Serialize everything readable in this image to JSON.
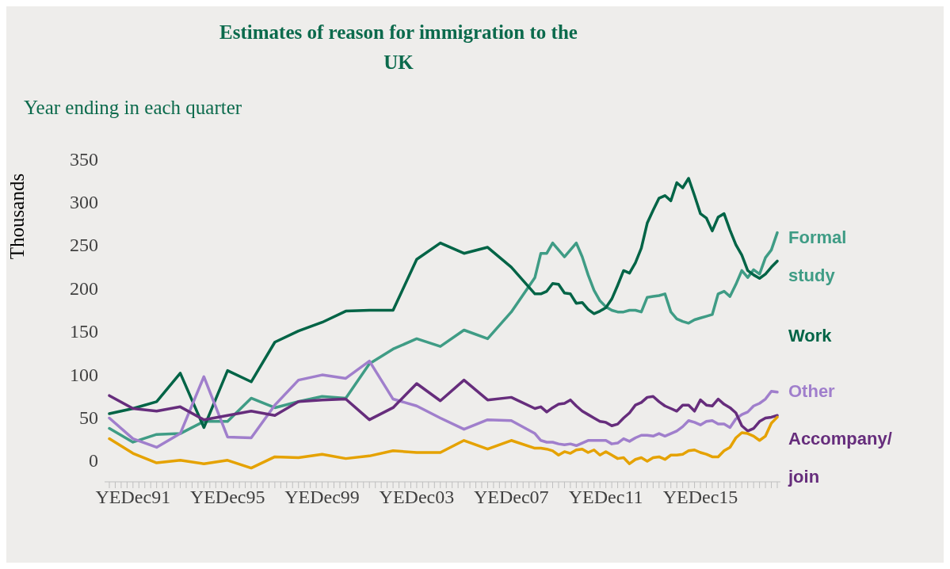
{
  "chart_data": {
    "type": "line",
    "title": "Estimates of reason for immigration to the UK",
    "subtitle": "Year ending in each quarter",
    "ylabel": "Thousands",
    "categories": [
      null,
      null,
      null,
      null,
      "YEDec91",
      null,
      null,
      null,
      null,
      null,
      null,
      null,
      null,
      null,
      null,
      null,
      null,
      null,
      null,
      null,
      "YEDec95",
      null,
      null,
      null,
      null,
      null,
      null,
      null,
      null,
      null,
      null,
      null,
      null,
      null,
      null,
      null,
      "YEDec99",
      null,
      null,
      null,
      null,
      null,
      null,
      null,
      null,
      null,
      null,
      null,
      null,
      null,
      null,
      null,
      "YEDec03",
      null,
      null,
      null,
      null,
      null,
      null,
      null,
      null,
      null,
      null,
      null,
      null,
      null,
      null,
      null,
      "YEDec07",
      null,
      null,
      null,
      null,
      null,
      null,
      null,
      null,
      null,
      null,
      null,
      null,
      null,
      null,
      null,
      "YEDec11",
      null,
      null,
      null,
      null,
      null,
      null,
      null,
      null,
      null,
      null,
      null,
      null,
      null,
      null,
      null,
      "YEDec15",
      null,
      null,
      null,
      null,
      null,
      null,
      null,
      null,
      null,
      null,
      null,
      null,
      null
    ],
    "series": [
      {
        "name": "Formal study",
        "color": "#3f9c85",
        "values": [
          37,
          null,
          null,
          null,
          21,
          null,
          null,
          null,
          30,
          null,
          null,
          null,
          31,
          null,
          null,
          null,
          45,
          null,
          null,
          null,
          45,
          null,
          null,
          null,
          72,
          null,
          null,
          null,
          61,
          null,
          null,
          null,
          68,
          null,
          null,
          null,
          74,
          null,
          null,
          null,
          72,
          null,
          null,
          null,
          112,
          null,
          null,
          null,
          129,
          null,
          null,
          null,
          141,
          null,
          null,
          null,
          132,
          null,
          null,
          null,
          151,
          null,
          null,
          null,
          141,
          null,
          null,
          null,
          172,
          null,
          null,
          null,
          212,
          240,
          240,
          252,
          244,
          236,
          244,
          252,
          236,
          215,
          197,
          185,
          178,
          174,
          172,
          172,
          174,
          174,
          172,
          189,
          190,
          191,
          193,
          172,
          164,
          161,
          159,
          163,
          165,
          167,
          169,
          193,
          196,
          190,
          204,
          220,
          212,
          221,
          216,
          235,
          244,
          264
        ]
      },
      {
        "name": "Work",
        "color": "#006446",
        "values": [
          54,
          null,
          null,
          null,
          60,
          null,
          null,
          null,
          68,
          null,
          null,
          null,
          101,
          null,
          null,
          null,
          38,
          null,
          null,
          null,
          104,
          null,
          null,
          null,
          91,
          null,
          null,
          null,
          137,
          null,
          null,
          null,
          150,
          null,
          null,
          null,
          160,
          null,
          null,
          null,
          173,
          null,
          null,
          null,
          174,
          null,
          null,
          null,
          174,
          null,
          null,
          null,
          233,
          null,
          null,
          null,
          252,
          null,
          null,
          null,
          240,
          null,
          null,
          null,
          247,
          null,
          null,
          null,
          224,
          null,
          null,
          null,
          193,
          193,
          196,
          205,
          204,
          194,
          193,
          182,
          183,
          175,
          170,
          173,
          177,
          187,
          203,
          220,
          217,
          229,
          246,
          275,
          290,
          304,
          307,
          301,
          322,
          316,
          327,
          307,
          286,
          281,
          266,
          282,
          286,
          267,
          250,
          238,
          220,
          215,
          211,
          216,
          224,
          231
        ]
      },
      {
        "name": "Other",
        "color": "#a07fcc",
        "values": [
          49,
          null,
          null,
          null,
          25,
          null,
          null,
          null,
          15,
          null,
          null,
          null,
          31,
          null,
          null,
          null,
          97,
          null,
          null,
          null,
          27,
          null,
          null,
          null,
          26,
          null,
          null,
          null,
          64,
          null,
          null,
          null,
          93,
          null,
          null,
          null,
          99,
          null,
          null,
          null,
          95,
          null,
          null,
          null,
          115,
          null,
          null,
          null,
          71,
          null,
          null,
          null,
          63,
          null,
          null,
          null,
          49,
          null,
          null,
          null,
          36,
          null,
          null,
          null,
          47,
          null,
          null,
          null,
          46,
          null,
          null,
          null,
          31,
          23,
          21,
          21,
          19,
          18,
          19,
          17,
          20,
          23,
          23,
          23,
          23,
          19,
          20,
          25,
          22,
          26,
          29,
          29,
          28,
          31,
          28,
          31,
          34,
          39,
          46,
          44,
          41,
          45,
          46,
          42,
          42,
          38,
          48,
          53,
          56,
          63,
          66,
          71,
          80,
          79
        ]
      },
      {
        "name": "Accompany/join",
        "color": "#662d7c",
        "values": [
          75,
          null,
          null,
          null,
          60,
          null,
          null,
          null,
          57,
          null,
          null,
          null,
          62,
          null,
          null,
          null,
          47,
          null,
          null,
          null,
          52,
          null,
          null,
          null,
          57,
          null,
          null,
          null,
          52,
          null,
          null,
          null,
          68,
          null,
          null,
          null,
          70,
          null,
          null,
          null,
          71,
          null,
          null,
          null,
          47,
          null,
          null,
          null,
          61,
          null,
          null,
          null,
          89,
          null,
          null,
          null,
          69,
          null,
          null,
          null,
          93,
          null,
          null,
          null,
          70,
          null,
          null,
          null,
          73,
          null,
          null,
          null,
          60,
          62,
          56,
          61,
          65,
          66,
          70,
          63,
          57,
          53,
          49,
          45,
          44,
          40,
          42,
          49,
          55,
          64,
          67,
          73,
          74,
          68,
          63,
          60,
          57,
          64,
          64,
          57,
          70,
          64,
          63,
          71,
          65,
          61,
          55,
          40,
          34,
          37,
          45,
          49,
          50,
          52
        ]
      },
      {
        "color": "#e5a200",
        "values": [
          25,
          null,
          null,
          null,
          8,
          null,
          null,
          null,
          -3,
          null,
          null,
          null,
          0,
          null,
          null,
          null,
          -4,
          null,
          null,
          null,
          0,
          null,
          null,
          null,
          -9,
          null,
          null,
          null,
          4,
          null,
          null,
          null,
          3,
          null,
          null,
          null,
          7,
          null,
          null,
          null,
          2,
          null,
          null,
          null,
          5,
          null,
          null,
          null,
          11,
          null,
          null,
          null,
          9,
          null,
          null,
          null,
          9,
          null,
          null,
          null,
          23,
          null,
          null,
          null,
          13,
          null,
          null,
          null,
          23,
          null,
          null,
          null,
          14,
          14,
          13,
          11,
          6,
          10,
          8,
          12,
          13,
          9,
          12,
          6,
          10,
          6,
          2,
          3,
          -4,
          1,
          3,
          -1,
          3,
          4,
          1,
          6,
          6,
          7,
          11,
          12,
          9,
          7,
          4,
          4,
          11,
          15,
          26,
          32,
          31,
          28,
          23,
          28,
          43,
          50
        ]
      }
    ],
    "ylim": [
      -25,
      350
    ],
    "yticks": [
      0,
      50,
      100,
      150,
      200,
      250,
      300,
      350
    ],
    "grid": false,
    "legend": false
  }
}
